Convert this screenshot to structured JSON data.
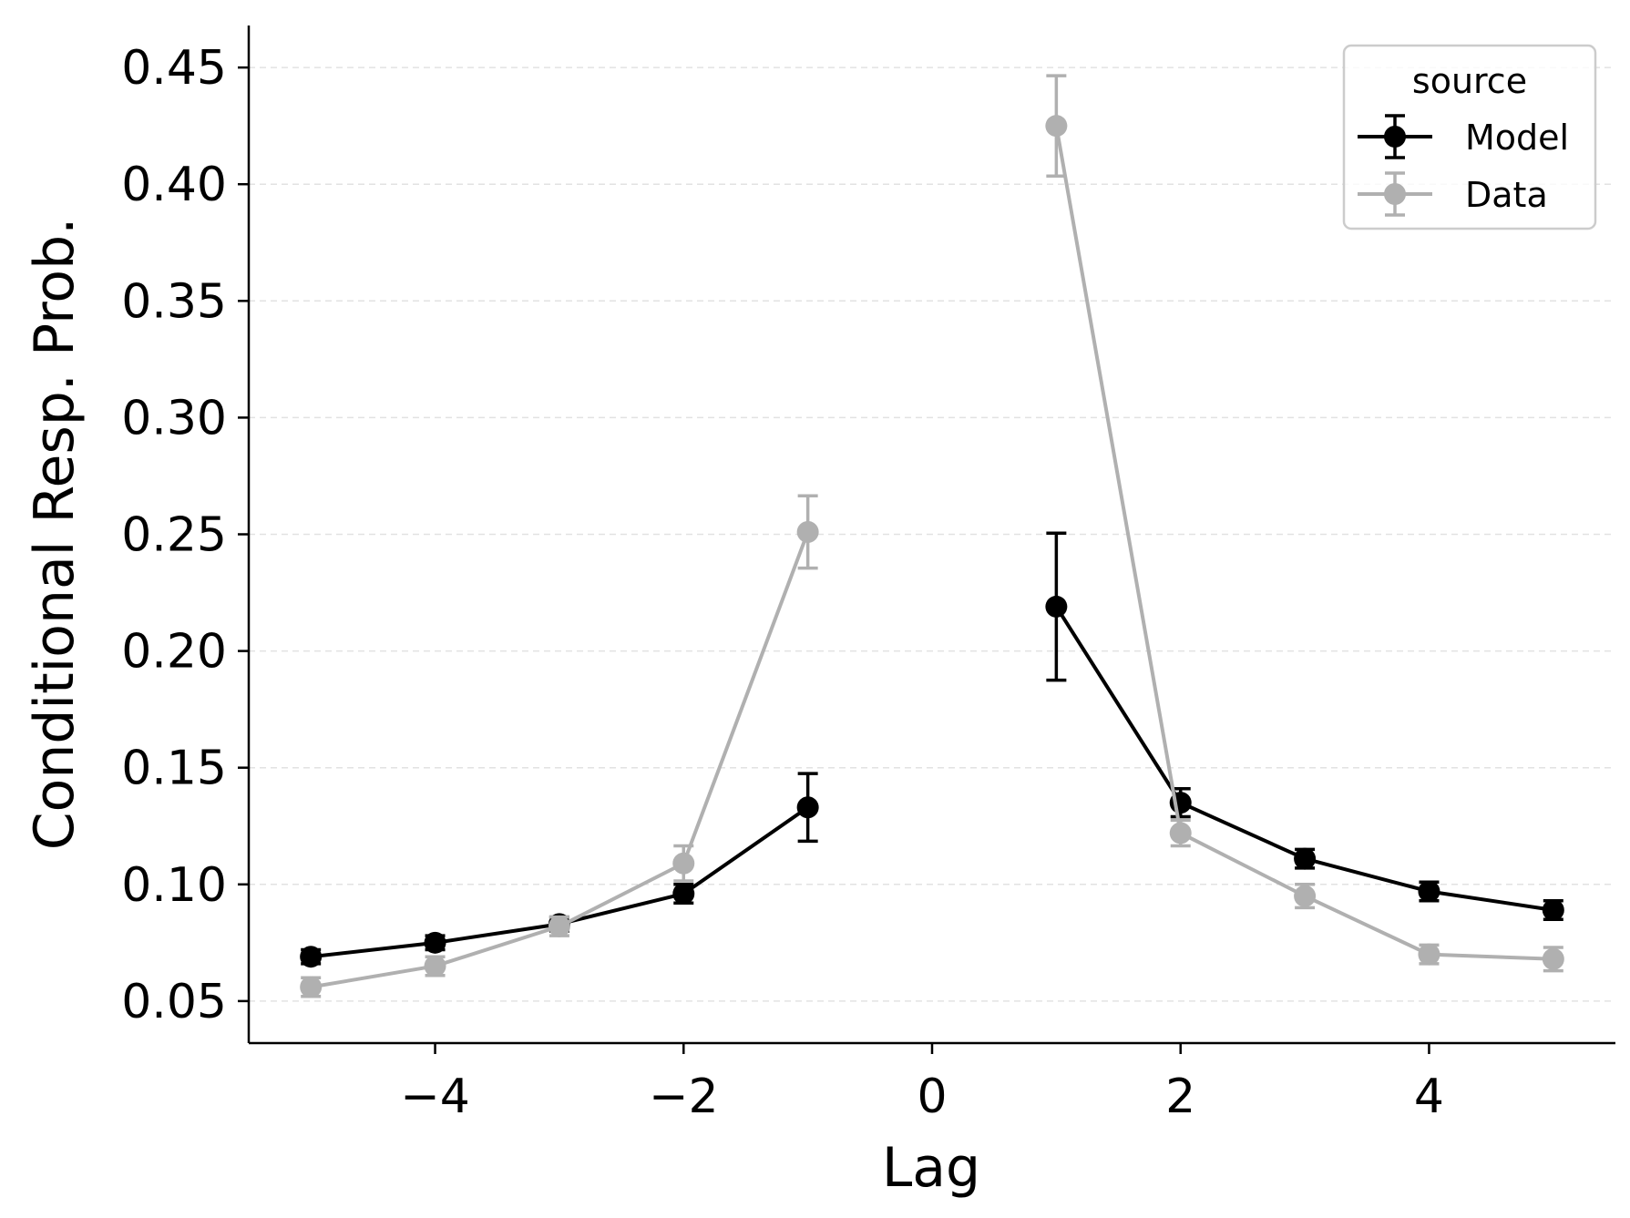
{
  "chart_data": {
    "type": "line",
    "title": "",
    "xlabel": "Lag",
    "ylabel": "Conditional Resp. Prob.",
    "xlim": [
      -5.5,
      5.5
    ],
    "ylim": [
      0.032,
      0.468
    ],
    "xticks": [
      -4,
      -2,
      0,
      2,
      4
    ],
    "xtick_labels": [
      "−4",
      "−2",
      "0",
      "2",
      "4"
    ],
    "yticks": [
      0.05,
      0.1,
      0.15,
      0.2,
      0.25,
      0.3,
      0.35,
      0.4,
      0.45
    ],
    "ytick_labels": [
      "0.05",
      "0.10",
      "0.15",
      "0.20",
      "0.25",
      "0.30",
      "0.35",
      "0.40",
      "0.45"
    ],
    "grid": "y-dashed",
    "legend": {
      "title": "source",
      "position": "top-right"
    },
    "series": [
      {
        "name": "Model",
        "color": "#000000",
        "segments": [
          {
            "x": [
              -5,
              -4,
              -3,
              -2,
              -1
            ],
            "y": [
              0.069,
              0.075,
              0.083,
              0.096,
              0.133
            ],
            "err": [
              0.003,
              0.003,
              0.003,
              0.004,
              0.0145
            ]
          },
          {
            "x": [
              1,
              2,
              3,
              4,
              5
            ],
            "y": [
              0.219,
              0.135,
              0.111,
              0.097,
              0.089
            ],
            "err": [
              0.0315,
              0.006,
              0.004,
              0.004,
              0.004
            ]
          }
        ]
      },
      {
        "name": "Data",
        "color": "#b0b0b0",
        "segments": [
          {
            "x": [
              -5,
              -4,
              -3,
              -2,
              -1
            ],
            "y": [
              0.056,
              0.065,
              0.082,
              0.109,
              0.251
            ],
            "err": [
              0.004,
              0.004,
              0.004,
              0.0075,
              0.0155
            ]
          },
          {
            "x": [
              1,
              2,
              3,
              4,
              5
            ],
            "y": [
              0.425,
              0.122,
              0.095,
              0.07,
              0.068
            ],
            "err": [
              0.0215,
              0.0055,
              0.005,
              0.004,
              0.005
            ]
          }
        ]
      }
    ]
  }
}
